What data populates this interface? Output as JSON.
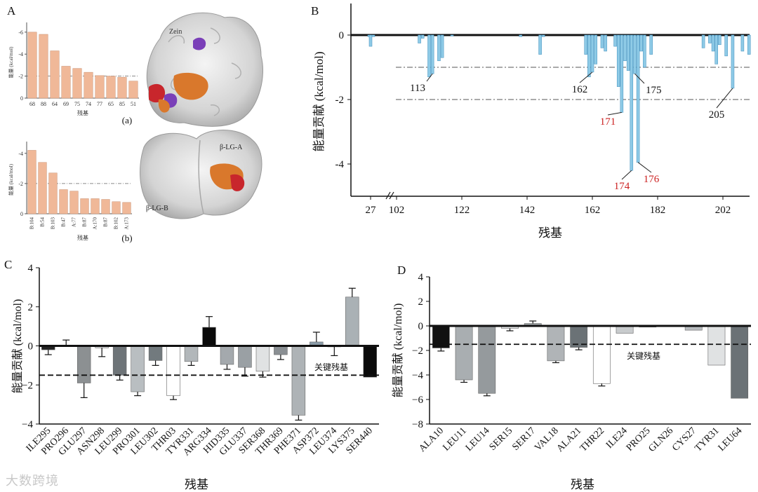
{
  "panels": {
    "A": "A",
    "B": "B",
    "C": "C",
    "D": "D"
  },
  "watermark": "大数跨境",
  "chart_data": [
    {
      "id": "Aa",
      "type": "bar",
      "sublabel": "(a)",
      "ylabel": "能量 (kcal/mol)",
      "xlabel": "残基",
      "categories": [
        "68",
        "88",
        "64",
        "69",
        "75",
        "74",
        "77",
        "65",
        "85",
        "51"
      ],
      "values": [
        -6.0,
        -5.8,
        -4.3,
        -2.9,
        -2.7,
        -2.35,
        -2.05,
        -2.0,
        -1.9,
        -1.55
      ],
      "ylim": [
        0,
        -6.5
      ],
      "yticks": [
        0,
        -2,
        -4,
        -6
      ],
      "ytick_labels": [
        "0",
        "-2",
        "-4",
        "-6"
      ],
      "threshold": -2,
      "bar_color": "#f0b898",
      "structure_labels": [
        "Zein"
      ]
    },
    {
      "id": "Ab",
      "type": "bar",
      "sublabel": "(b)",
      "ylabel": "能量 (kcal/mol)",
      "xlabel": "残基",
      "categories": [
        "B:104",
        "B:54",
        "B:103",
        "B:47",
        "A:77",
        "B:87",
        "A:170",
        "B:87",
        "B:102",
        "A:173"
      ],
      "values": [
        -4.2,
        -3.4,
        -2.7,
        -1.6,
        -1.5,
        -1.0,
        -1.0,
        -0.95,
        -0.8,
        -0.75
      ],
      "ylim": [
        0,
        -4.5
      ],
      "yticks": [
        0,
        -2,
        -4
      ],
      "ytick_labels": [
        "0",
        "-2",
        "-4"
      ],
      "threshold": -2,
      "bar_color": "#f0b898",
      "structure_labels": [
        "β-LG-A",
        "β-LG-B"
      ]
    },
    {
      "id": "B",
      "type": "bar",
      "ylabel": "能量贡献 (kcal/mol)",
      "xlabel": "残基",
      "xtick_labels": [
        "27",
        "102",
        "122",
        "142",
        "162",
        "182",
        "202"
      ],
      "ylim": [
        0,
        -5
      ],
      "yticks": [
        0,
        -2,
        -4
      ],
      "ytick_labels": [
        "0",
        "-2",
        "-4"
      ],
      "thresholds": [
        -1,
        -2
      ],
      "bar_color": "#8ecae6",
      "residues_segment1": [
        {
          "res": 25,
          "v": -0.05
        },
        {
          "res": 27,
          "v": -0.35
        },
        {
          "res": 31,
          "v": -0.05
        }
      ],
      "residues_segment2": [
        {
          "res": 109,
          "v": -0.25
        },
        {
          "res": 110,
          "v": -0.1
        },
        {
          "res": 112,
          "v": -1.3
        },
        {
          "res": 113,
          "v": -1.2
        },
        {
          "res": 115,
          "v": -0.8
        },
        {
          "res": 116,
          "v": -0.7
        },
        {
          "res": 119,
          "v": -0.03
        },
        {
          "res": 140,
          "v": -0.05
        },
        {
          "res": 146,
          "v": -0.6
        },
        {
          "res": 147,
          "v": -0.05
        },
        {
          "res": 160,
          "v": -0.6
        },
        {
          "res": 161,
          "v": -1.3
        },
        {
          "res": 162,
          "v": -1.15
        },
        {
          "res": 163,
          "v": -0.9
        },
        {
          "res": 165,
          "v": -0.4
        },
        {
          "res": 166,
          "v": -0.5
        },
        {
          "res": 169,
          "v": -0.35
        },
        {
          "res": 170,
          "v": -1.6
        },
        {
          "res": 171,
          "v": -2.4
        },
        {
          "res": 172,
          "v": -0.8
        },
        {
          "res": 173,
          "v": -1.1
        },
        {
          "res": 174,
          "v": -4.2
        },
        {
          "res": 175,
          "v": -1.2
        },
        {
          "res": 176,
          "v": -3.95
        },
        {
          "res": 177,
          "v": -0.5
        },
        {
          "res": 178,
          "v": -1.0
        },
        {
          "res": 180,
          "v": -0.6
        },
        {
          "res": 196,
          "v": -0.4
        },
        {
          "res": 198,
          "v": -0.25
        },
        {
          "res": 199,
          "v": -0.5
        },
        {
          "res": 200,
          "v": -0.9
        },
        {
          "res": 201,
          "v": -0.3
        },
        {
          "res": 203,
          "v": -0.65
        },
        {
          "res": 205,
          "v": -1.65
        },
        {
          "res": 208,
          "v": -0.5
        },
        {
          "res": 210,
          "v": -0.6
        }
      ],
      "annotations": [
        {
          "text": "113",
          "res": 113,
          "v": -1.2,
          "color": "#111111"
        },
        {
          "text": "162",
          "res": 162,
          "v": -1.15,
          "color": "#111111"
        },
        {
          "text": "175",
          "res": 175,
          "v": -1.2,
          "color": "#111111"
        },
        {
          "text": "171",
          "res": 171,
          "v": -2.4,
          "color": "#cc2222"
        },
        {
          "text": "205",
          "res": 205,
          "v": -1.65,
          "color": "#111111"
        },
        {
          "text": "174",
          "res": 174,
          "v": -4.2,
          "color": "#cc2222"
        },
        {
          "text": "176",
          "res": 176,
          "v": -3.95,
          "color": "#cc2222"
        }
      ]
    },
    {
      "id": "C",
      "type": "bar",
      "ylabel": "能量贡献 (kcal/mol)",
      "xlabel": "残基",
      "categories": [
        "ILE295",
        "PRO296",
        "GLU297",
        "ASN298",
        "LEU299",
        "PRO301",
        "LEU302",
        "THR03",
        "TYR331",
        "ARG334",
        "HID335",
        "GLU337",
        "SER368",
        "THR369",
        "PHE371",
        "ASP372",
        "LEU374",
        "LYS375",
        "SER440"
      ],
      "values": [
        -0.2,
        0.0,
        -1.9,
        -0.1,
        -1.5,
        -2.35,
        -0.75,
        -2.55,
        -0.8,
        0.95,
        -0.95,
        -1.1,
        -1.3,
        -0.45,
        -3.55,
        0.2,
        -0.05,
        2.5,
        -1.6
      ],
      "errors": [
        0.25,
        0.3,
        0.75,
        0.45,
        0.25,
        0.2,
        0.25,
        0.2,
        0.2,
        0.55,
        0.25,
        0.45,
        0.3,
        0.25,
        0.25,
        0.5,
        0.45,
        0.45,
        0.0
      ],
      "colors": [
        "#222222",
        "#222222",
        "#8c9092",
        "#d8dadb",
        "#6e7478",
        "#b9bec1",
        "#727a7e",
        "#ffffff",
        "#b2b7ba",
        "#0a0a0a",
        "#a4a9ad",
        "#9aa0a4",
        "#e0e2e3",
        "#8a8f93",
        "#aeb3b6",
        "#8a9ba8",
        "#cfd2d4",
        "#aab1b5",
        "#0a0a0a"
      ],
      "ylim": [
        -4,
        4
      ],
      "yticks": [
        -4,
        -2,
        0,
        2,
        4
      ],
      "ytick_labels": [
        "−4",
        "−2",
        "0",
        "2",
        "4"
      ],
      "threshold": -1.5,
      "threshold_label": "关键残基"
    },
    {
      "id": "D",
      "type": "bar",
      "ylabel": "能量贡献 (kcal/mol)",
      "xlabel": "残基",
      "categories": [
        "ALA10",
        "LEU11",
        "LEU14",
        "SER15",
        "SER17",
        "VAL18",
        "ALA21",
        "THR22",
        "ILE24",
        "PRO25",
        "GLN26",
        "CYS27",
        "TYR31",
        "LEU64"
      ],
      "values": [
        -1.8,
        -4.4,
        -5.5,
        -0.2,
        0.2,
        -2.85,
        -1.75,
        -4.7,
        -0.6,
        -0.1,
        0.05,
        -0.35,
        -3.2,
        -5.9
      ],
      "errors": [
        0.25,
        0.2,
        0.2,
        0.2,
        0.2,
        0.15,
        0.2,
        0.2,
        0.0,
        0.0,
        0.0,
        0.0,
        0.0,
        0.0
      ],
      "colors": [
        "#111111",
        "#a9aeb1",
        "#959a9d",
        "#e8e9ea",
        "#a6abae",
        "#b0b4b7",
        "#6b7276",
        "#ffffff",
        "#c8cbcd",
        "#555555",
        "#e0e2e3",
        "#b8bcbf",
        "#e0e2e3",
        "#6b7276"
      ],
      "ylim": [
        -8,
        4
      ],
      "yticks": [
        -8,
        -6,
        -4,
        -2,
        0,
        2,
        4
      ],
      "ytick_labels": [
        "−8",
        "−6",
        "−4",
        "−2",
        "0",
        "2",
        "4"
      ],
      "threshold": -1.5,
      "threshold_label": "关键残基"
    }
  ]
}
